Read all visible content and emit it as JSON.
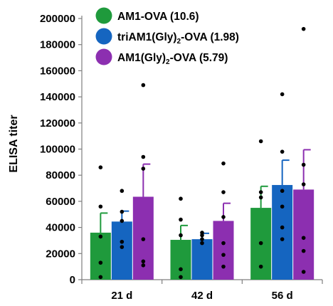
{
  "chart_data": {
    "type": "bar",
    "title": "",
    "xlabel": "",
    "ylabel": "ELISA titer",
    "ylim": [
      0,
      200000
    ],
    "yticks": [
      0,
      20000,
      40000,
      60000,
      80000,
      100000,
      120000,
      140000,
      160000,
      180000,
      200000
    ],
    "grid": false,
    "legend_position": "top-left",
    "categories": [
      "21 d",
      "42 d",
      "56 d"
    ],
    "series": [
      {
        "name": "AM1-OVA (10.6)",
        "legend": {
          "pre": "AM1-OVA (10.6)",
          "sub": "",
          "post": ""
        },
        "color": "#1f9a3c",
        "values": [
          36000,
          30500,
          55000
        ],
        "error_upper": [
          51000,
          41500,
          71500
        ],
        "points": [
          [
            86000,
            56000,
            33000,
            13000,
            2000
          ],
          [
            62000,
            46000,
            34000,
            8000,
            2000
          ],
          [
            106000,
            67000,
            63000,
            28000,
            10000
          ]
        ]
      },
      {
        "name": "triAM1(Gly)2-OVA (1.98)",
        "legend": {
          "pre": "triAM1(Gly)",
          "sub": "2",
          "post": "-OVA (1.98)"
        },
        "color": "#1565c0",
        "values": [
          44500,
          31000,
          72500
        ],
        "error_upper": [
          52500,
          35500,
          91500
        ],
        "points": [
          [
            68000,
            52000,
            45000,
            29000,
            25000
          ],
          [
            36000,
            34000,
            31000,
            28000
          ],
          [
            142000,
            98000,
            68000,
            56000,
            40000,
            31000
          ]
        ]
      },
      {
        "name": "AM1(Gly)2-OVA (5.79)",
        "legend": {
          "pre": "AM1(Gly)",
          "sub": "2",
          "post": "-OVA (5.79)"
        },
        "color": "#8c2fb0",
        "values": [
          63500,
          45000,
          69000
        ],
        "error_upper": [
          88500,
          58500,
          99500
        ],
        "points": [
          [
            149000,
            94000,
            85000,
            31000,
            14000,
            11000
          ],
          [
            89000,
            67000,
            48000,
            28000,
            19000,
            10000
          ],
          [
            192000,
            88000,
            73000,
            32000,
            22000,
            6000
          ]
        ]
      }
    ]
  }
}
